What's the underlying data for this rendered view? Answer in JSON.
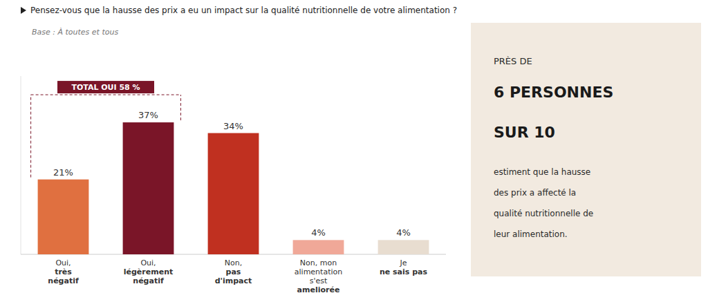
{
  "chart_data": {
    "type": "bar",
    "title": "Pensez-vous que la hausse des prix a eu un impact sur la qualité nutritionnelle de votre alimentation ?",
    "subtitle": "Base : À toutes et tous",
    "categories": [
      "Oui,\ntrès\nnégatif",
      "Oui,\nlégèrement\nnégatif",
      "Non,\npas\nd'impact",
      "Non, mon\nalimentation\ns'est\nameliorée",
      "Je\nne sais pas"
    ],
    "values": [
      21,
      37,
      34,
      4,
      4
    ],
    "value_labels": [
      "21%",
      "37%",
      "34%",
      "4%",
      "4%"
    ],
    "colors": [
      "#E07040",
      "#7A1528",
      "#C03020",
      "#F0A898",
      "#E8DDD0"
    ],
    "ylim": [
      0,
      50
    ],
    "tick_labels": false,
    "grid": false,
    "data_labels": true,
    "annotations": [
      {
        "text": "TOTAL OUI 58 %",
        "color": "#7A1528"
      },
      {
        "text": "PRÈS DE\n6 PERSONNES\nSUR 10\nestiment que la hausse\ndes prix a affecté la\nqualité nutritionnelle de\nleur alimentation.",
        "color": "#F2EAE0"
      }
    ]
  }
}
